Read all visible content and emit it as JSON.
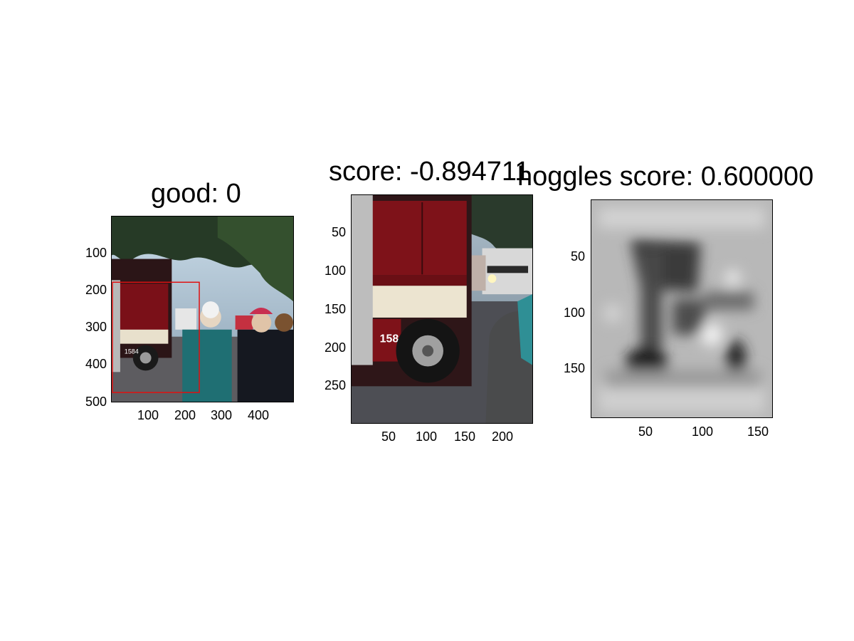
{
  "panels": [
    {
      "id": "panel1",
      "title": "good: 0",
      "y_ticks": [
        "100",
        "200",
        "300",
        "400",
        "500"
      ],
      "x_ticks": [
        "100",
        "200",
        "300",
        "400"
      ]
    },
    {
      "id": "panel2",
      "title": "score: -0.894711",
      "y_ticks": [
        "50",
        "100",
        "150",
        "200",
        "250"
      ],
      "x_ticks": [
        "50",
        "100",
        "150",
        "200"
      ],
      "image_text": "1584"
    },
    {
      "id": "panel3",
      "title": "hoggles score: 0.600000",
      "y_ticks": [
        "50",
        "100",
        "150"
      ],
      "x_ticks": [
        "50",
        "100",
        "150"
      ]
    }
  ],
  "panel1_image_text": "1584",
  "colors": {
    "box": "#e01010",
    "truck_red": "#7a1018"
  }
}
